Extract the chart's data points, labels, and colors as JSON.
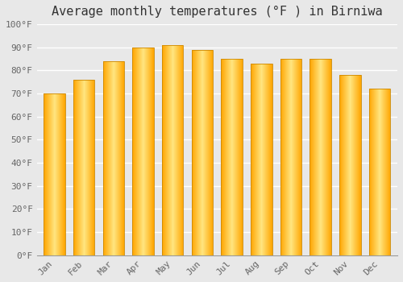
{
  "months": [
    "Jan",
    "Feb",
    "Mar",
    "Apr",
    "May",
    "Jun",
    "Jul",
    "Aug",
    "Sep",
    "Oct",
    "Nov",
    "Dec"
  ],
  "values": [
    70,
    76,
    84,
    90,
    91,
    89,
    85,
    83,
    85,
    85,
    78,
    72
  ],
  "bar_color_center": "#FFE066",
  "bar_color_edge": "#FFA500",
  "bar_border_color": "#CC8800",
  "title": "Average monthly temperatures (°F ) in Birniwa",
  "ylim": [
    0,
    100
  ],
  "yticks": [
    0,
    10,
    20,
    30,
    40,
    50,
    60,
    70,
    80,
    90,
    100
  ],
  "ytick_labels": [
    "0°F",
    "10°F",
    "20°F",
    "30°F",
    "40°F",
    "50°F",
    "60°F",
    "70°F",
    "80°F",
    "90°F",
    "100°F"
  ],
  "background_color": "#e8e8e8",
  "grid_color": "#ffffff",
  "title_fontsize": 11,
  "tick_fontsize": 8,
  "bar_width": 0.72
}
